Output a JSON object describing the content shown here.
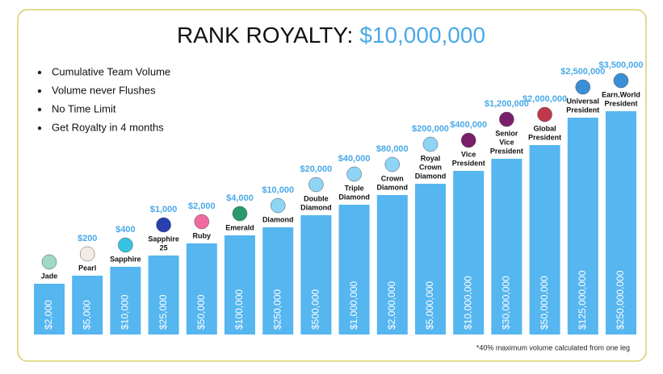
{
  "title": {
    "text": "RANK ROYALTY:",
    "amount": "$10,000,000"
  },
  "bullets": [
    "Cumulative Team Volume",
    "Volume never Flushes",
    "No Time Limit",
    "Get Royalty in 4 months"
  ],
  "ranks": [
    {
      "name": [
        "Jade"
      ],
      "volume": "$2,000"
    },
    {
      "name": [
        "Pearl"
      ],
      "bonus": "$200",
      "volume": "$5,000"
    },
    {
      "name": [
        "Sapphire"
      ],
      "bonus": "$400",
      "volume": "$10,000"
    },
    {
      "name": [
        "Sapphire",
        "25"
      ],
      "bonus": "$1,000",
      "volume": "$25,000"
    },
    {
      "name": [
        "Ruby"
      ],
      "bonus": "$2,000",
      "volume": "$50,000"
    },
    {
      "name": [
        "Emerald"
      ],
      "bonus": "$4,000",
      "volume": "$100,000"
    },
    {
      "name": [
        "Diamond"
      ],
      "bonus": "$10,000",
      "volume": "$250,000"
    },
    {
      "name": [
        "Double",
        "Diamond"
      ],
      "bonus": "$20,000",
      "volume": "$500,000"
    },
    {
      "name": [
        "Triple",
        "Diamond"
      ],
      "bonus": "$40,000",
      "volume": "$1,000,000"
    },
    {
      "name": [
        "Crown",
        "Diamond"
      ],
      "bonus": "$80,000",
      "volume": "$2,000,000"
    },
    {
      "name": [
        "Royal",
        "Crown",
        "Diamond"
      ],
      "bonus": "$200,000",
      "volume": "$5,000,000"
    },
    {
      "name": [
        "Vice",
        "President"
      ],
      "bonus": "$400,000",
      "volume": "$10,000,000"
    },
    {
      "name": [
        "Senior",
        "Vice",
        "President"
      ],
      "bonus": "$1,200,000",
      "volume": "$30,000,000"
    },
    {
      "name": [
        "Global",
        "President"
      ],
      "bonus": "$2,000,000",
      "volume": "$50,000,000"
    },
    {
      "name": [
        "Universal",
        "President"
      ],
      "bonus": "$2,500,000",
      "volume": "$125,000,000"
    },
    {
      "name": [
        "Earn.World",
        "President"
      ],
      "bonus": "$3,500,000",
      "volume": "$250,000,000"
    }
  ],
  "footnote": "*40% maximum volume calculated from one leg"
}
